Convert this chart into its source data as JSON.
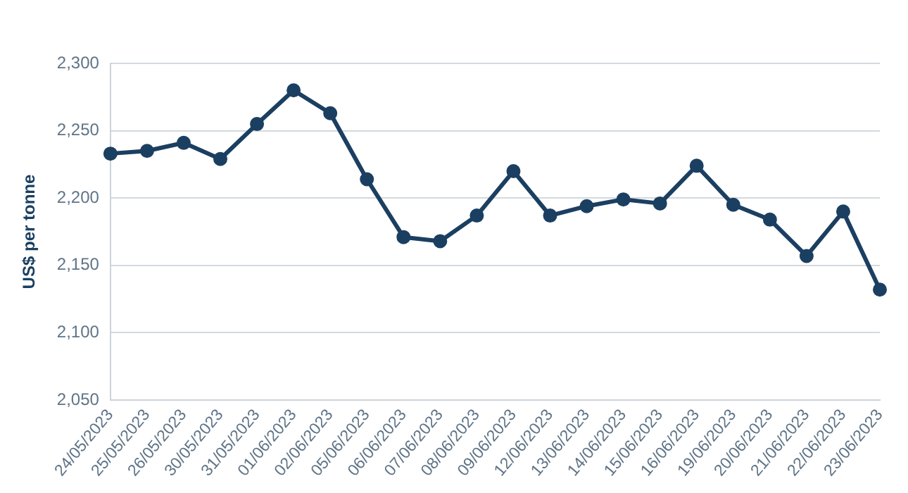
{
  "chart_data": {
    "type": "line",
    "ylabel": "US$ per tonne",
    "categories": [
      "24/05/2023",
      "25/05/2023",
      "26/05/2023",
      "30/05/2023",
      "31/05/2023",
      "01/06/2023",
      "02/06/2023",
      "05/06/2023",
      "06/06/2023",
      "07/06/2023",
      "08/06/2023",
      "09/06/2023",
      "12/06/2023",
      "13/06/2023",
      "14/06/2023",
      "15/06/2023",
      "16/06/2023",
      "19/06/2023",
      "20/06/2023",
      "21/06/2023",
      "22/06/2023",
      "23/06/2023"
    ],
    "series": [
      {
        "color": "#1b3f61",
        "values": [
          2233,
          2235,
          2241,
          2229,
          2255,
          2280,
          2263,
          2214,
          2171,
          2168,
          2187,
          2220,
          2187,
          2194,
          2199,
          2196,
          2224,
          2195,
          2184,
          2157,
          2190,
          2132
        ]
      }
    ],
    "ylim": [
      2050,
      2300
    ],
    "yticks": [
      {
        "value": 2050,
        "label": "2,050"
      },
      {
        "value": 2100,
        "label": "2,100"
      },
      {
        "value": 2150,
        "label": "2,150"
      },
      {
        "value": 2200,
        "label": "2,200"
      },
      {
        "value": 2250,
        "label": "2,250"
      },
      {
        "value": 2300,
        "label": "2,300"
      }
    ],
    "grid": "y",
    "marker": "circle",
    "line_style": "solid",
    "legend": false
  }
}
